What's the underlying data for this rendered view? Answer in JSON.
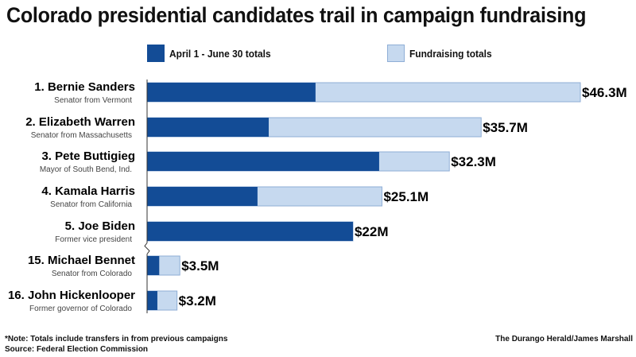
{
  "title": "Colorado presidential candidates trail in campaign fundraising",
  "legend": {
    "q2_label": "April 1 - June 30 totals",
    "total_label": "Fundraising totals"
  },
  "colors": {
    "q2": "#134c96",
    "total": "#c6d9ef",
    "total_border": "#8faed6"
  },
  "chart_data": {
    "type": "bar",
    "orientation": "horizontal",
    "stacked": false,
    "categories": [
      "1. Bernie Sanders",
      "2. Elizabeth Warren",
      "3. Pete Buttigieg",
      "4. Kamala Harris",
      "5. Joe Biden",
      "15. Michael Bennet",
      "16. John Hickenlooper"
    ],
    "subtitles": [
      "Senator from Vermont",
      "Senator from Massachusetts",
      "Mayor of South Bend, Ind.",
      "Senator from California",
      "Former vice president",
      "Senator from Colorado",
      "Former governor of Colorado"
    ],
    "series": [
      {
        "name": "Fundraising totals",
        "values": [
          46.3,
          35.7,
          32.3,
          25.1,
          22.0,
          3.5,
          3.2
        ]
      },
      {
        "name": "April 1 - June 30 totals",
        "values": [
          18.0,
          13.0,
          24.8,
          11.8,
          22.0,
          1.3,
          1.1
        ]
      }
    ],
    "value_labels": [
      "$46.3M",
      "$35.7M",
      "$32.3M",
      "$25.1M",
      "$22M",
      "$3.5M",
      "$3.2M"
    ],
    "xlim": [
      0,
      46.3
    ],
    "grid": false,
    "axis_break_after_index": 4,
    "legend_position": "top"
  },
  "footer": {
    "note": "*Note: Totals include transfers in from previous campaigns",
    "source": "Source: Federal Election Commission",
    "credit": "The Durango Herald/James Marshall"
  }
}
